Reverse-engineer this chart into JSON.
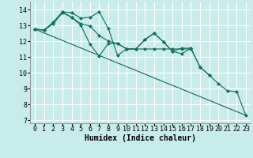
{
  "background_color": "#c8ece9",
  "grid_color": "#ffffff",
  "line_color": "#1a7060",
  "xlabel": "Humidex (Indice chaleur)",
  "xlabel_fontsize": 7,
  "tick_fontsize": 6,
  "xlim": [
    -0.5,
    23.5
  ],
  "ylim": [
    6.8,
    14.5
  ],
  "yticks": [
    7,
    8,
    9,
    10,
    11,
    12,
    13,
    14
  ],
  "xticks": [
    0,
    1,
    2,
    3,
    4,
    5,
    6,
    7,
    8,
    9,
    10,
    11,
    12,
    13,
    14,
    15,
    16,
    17,
    18,
    19,
    20,
    21,
    22,
    23
  ],
  "series": [
    {
      "x": [
        0,
        1,
        2,
        3,
        4,
        5,
        6,
        7,
        8,
        9,
        10,
        11,
        12,
        13,
        14,
        15,
        16,
        17,
        18,
        19
      ],
      "y": [
        12.75,
        12.7,
        13.2,
        13.85,
        13.8,
        13.45,
        13.5,
        13.85,
        12.8,
        11.1,
        11.5,
        11.5,
        12.1,
        12.5,
        11.95,
        11.35,
        11.55,
        11.55,
        10.35,
        9.85
      ],
      "has_markers": true
    },
    {
      "x": [
        0,
        1,
        2,
        3,
        4,
        5,
        6,
        7,
        8,
        9,
        10,
        11,
        12,
        13,
        14,
        15,
        16,
        17
      ],
      "y": [
        12.75,
        12.7,
        13.15,
        13.85,
        13.5,
        13.1,
        12.95,
        12.35,
        12.0,
        11.85,
        11.5,
        11.5,
        11.5,
        11.5,
        11.5,
        11.5,
        11.5,
        11.5
      ],
      "has_markers": true
    },
    {
      "x": [
        0,
        1,
        2,
        3,
        4,
        5,
        6,
        7,
        8,
        9,
        10,
        11,
        12,
        13,
        14,
        15,
        16,
        17,
        18,
        19,
        20,
        21,
        22,
        23
      ],
      "y": [
        12.75,
        12.7,
        13.1,
        13.8,
        13.5,
        13.0,
        11.8,
        11.05,
        11.85,
        11.85,
        11.5,
        11.5,
        12.1,
        12.5,
        11.95,
        11.35,
        11.2,
        11.55,
        10.35,
        9.85,
        9.3,
        8.85,
        8.8,
        7.3
      ],
      "has_markers": true
    },
    {
      "x": [
        0,
        23
      ],
      "y": [
        12.75,
        7.3
      ],
      "has_markers": false
    }
  ]
}
